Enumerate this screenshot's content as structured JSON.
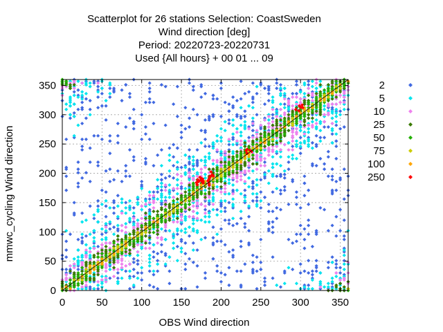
{
  "chart_data": {
    "type": "scatter",
    "title_lines": [
      "Scatterplot for   26 stations Selection: CoastSweden",
      "Wind direction [deg]",
      "Period: 20220723-20220731",
      "Used {All hours} + 00 01 ... 09"
    ],
    "xlabel": "OBS Wind direction",
    "ylabel": "mmwc_cycling Wind direction",
    "xlim": [
      0,
      360
    ],
    "ylim": [
      0,
      360
    ],
    "xticks": [
      0,
      50,
      100,
      150,
      200,
      250,
      300,
      350
    ],
    "yticks": [
      0,
      50,
      100,
      150,
      200,
      250,
      300,
      350
    ],
    "grid": true,
    "legend_position": "right",
    "diagonal_line": true,
    "density_classes": [
      {
        "label": "2",
        "color": "#4169e1",
        "spread": 140,
        "count": 900
      },
      {
        "label": "5",
        "color": "#00e5ee",
        "spread": 70,
        "count": 800
      },
      {
        "label": "10",
        "color": "#ee82ee",
        "spread": 35,
        "count": 700
      },
      {
        "label": "25",
        "color": "#3a7a00",
        "spread": 18,
        "count": 650
      },
      {
        "label": "50",
        "color": "#22b000",
        "spread": 10,
        "count": 550
      },
      {
        "label": "75",
        "color": "#cccc00",
        "spread": 5,
        "count": 140
      },
      {
        "label": "100",
        "color": "#ffa500",
        "spread": 3,
        "count": 70
      },
      {
        "label": "250",
        "color": "#ff0000",
        "spread": 2,
        "count": 30
      }
    ],
    "hotspots_250": [
      [
        170,
        182
      ],
      [
        175,
        190
      ],
      [
        182,
        185
      ],
      [
        188,
        195
      ],
      [
        235,
        238
      ],
      [
        300,
        312
      ]
    ]
  }
}
